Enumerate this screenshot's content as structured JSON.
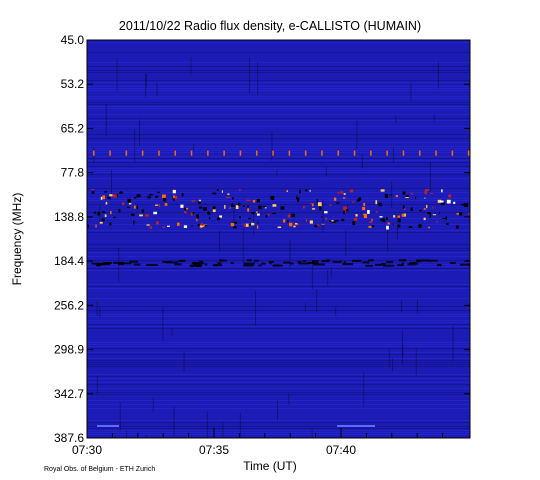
{
  "chart_data": {
    "type": "heatmap",
    "title": "2011/10/22  Radio flux density, e-CALLISTO (HUMAIN)",
    "xlabel": "Time (UT)",
    "ylabel": "Frequency (MHz)",
    "x_ticks": [
      "07:30",
      "07:35",
      "07:40"
    ],
    "y_ticks": [
      "45.0",
      "53.2",
      "65.2",
      "77.8",
      "138.8",
      "184.4",
      "256.2",
      "298.9",
      "342.7",
      "387.6"
    ],
    "colormap": [
      "#000000",
      "#10107a",
      "#1e1ec8",
      "#2a2ae0",
      "#c02020",
      "#ff6a00",
      "#ffd060",
      "#ffffff"
    ],
    "background_color": "#1c1cb4"
  },
  "footer": {
    "credit": "Royal Obs. of Belgium - ETH Zurich"
  }
}
